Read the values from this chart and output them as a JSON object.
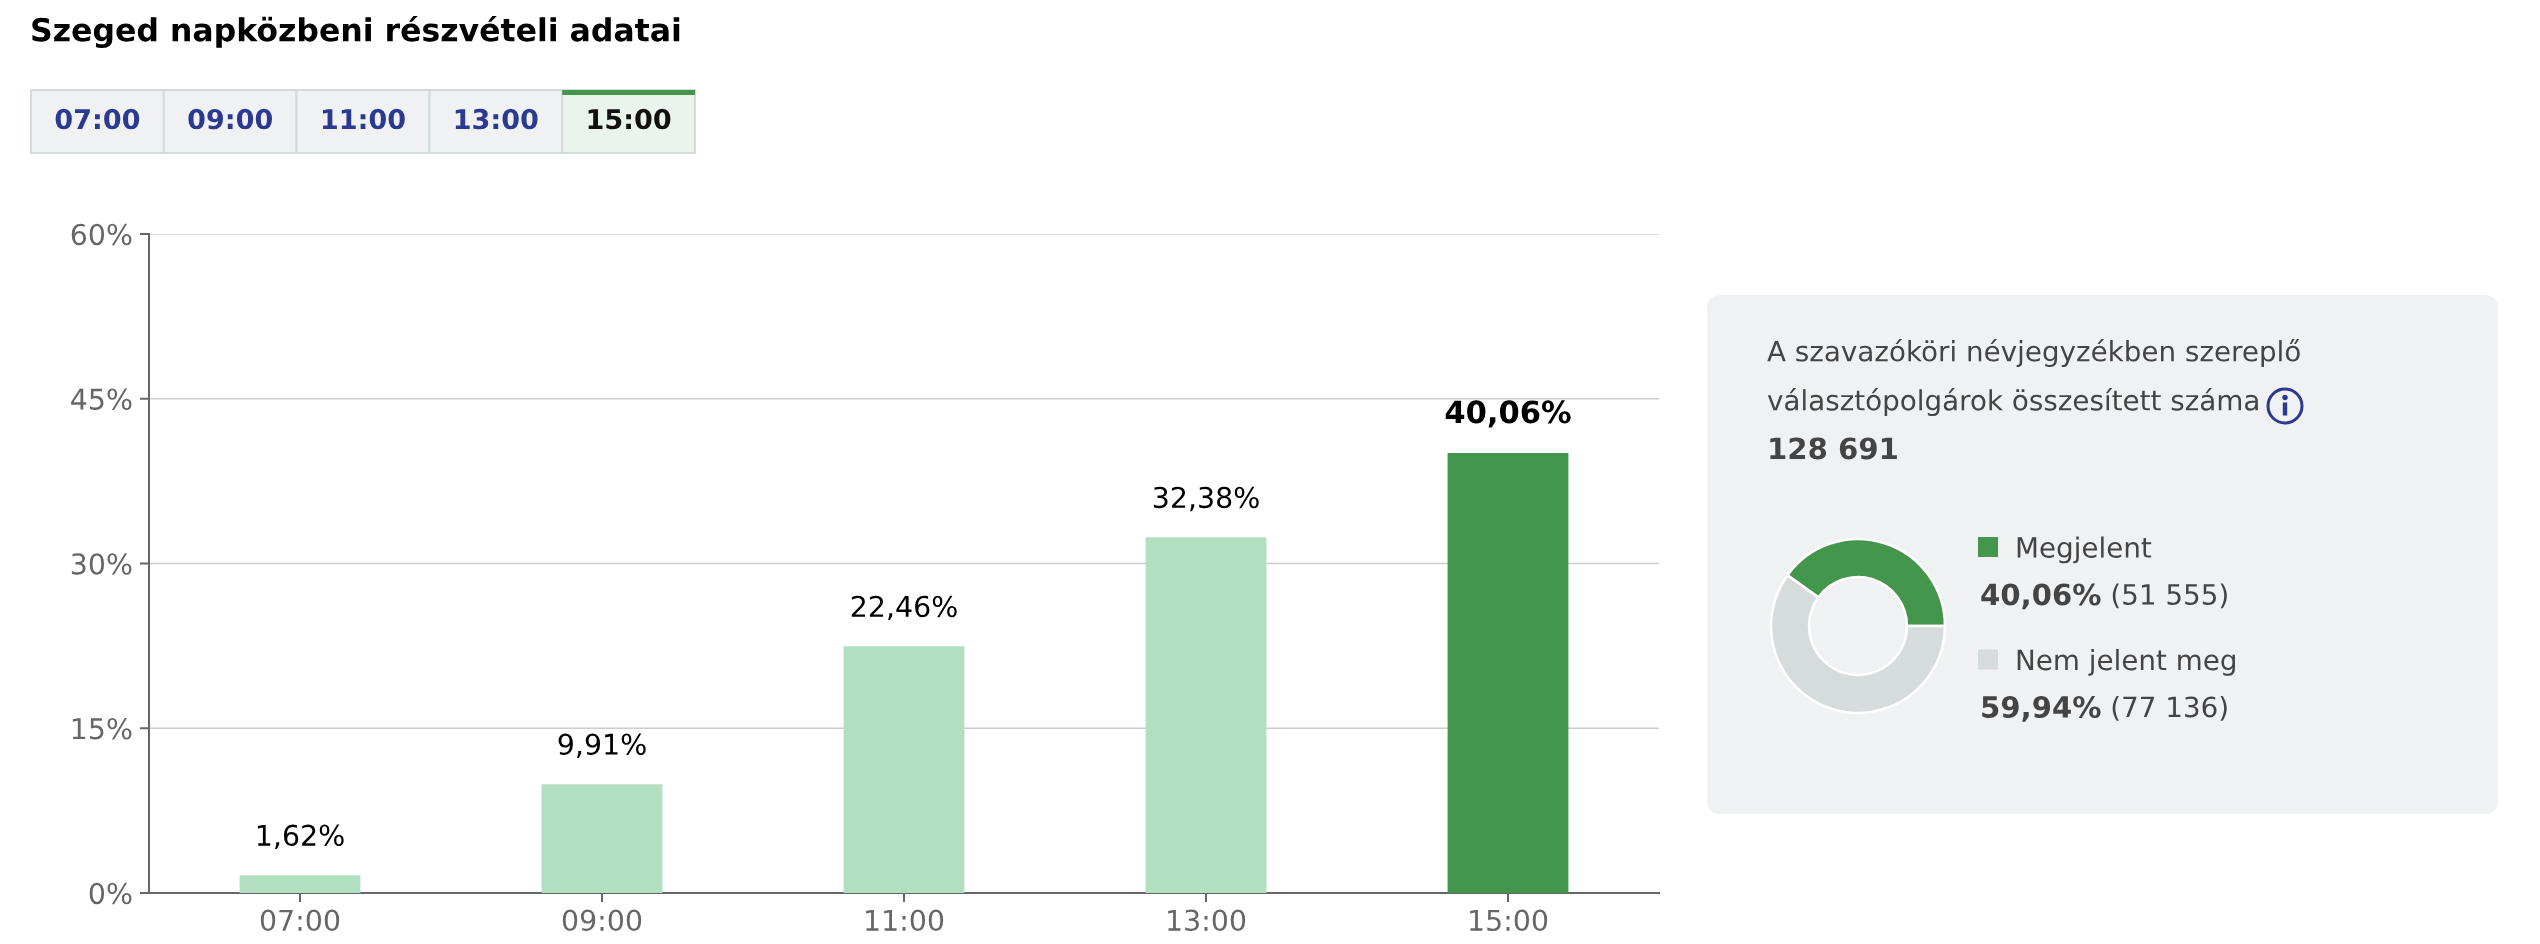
{
  "chart_data": [
    {
      "type": "bar",
      "title": "Szeged napközbeni részvételi adatai",
      "categories": [
        "07:00",
        "09:00",
        "11:00",
        "13:00",
        "15:00"
      ],
      "values": [
        1.62,
        9.91,
        22.46,
        32.38,
        40.06
      ],
      "colors": [
        "#b2dfc0",
        "#b2dfc0",
        "#b2dfc0",
        "#b2dfc0",
        "#43964b"
      ],
      "value_labels": [
        "1,62%",
        "9,91%",
        "22,46%",
        "32,38%",
        "40,06%"
      ],
      "ylim": [
        0,
        60
      ],
      "yticks": [
        {
          "value": 0,
          "label": "0%"
        },
        {
          "value": 15,
          "label": "15%"
        },
        {
          "value": 30,
          "label": "30%"
        },
        {
          "value": 45,
          "label": "45%"
        },
        {
          "value": 60,
          "label": "60%"
        }
      ],
      "grid": "y"
    },
    {
      "type": "donut",
      "title": "A szavazóköri névjegyzékben szereplő választópolgárok összesített száma",
      "subtitle": "128 691",
      "categories": [
        "Megjelent",
        "Nem jelent meg"
      ],
      "values": [
        40.06,
        59.94
      ],
      "colors": [
        "#43964b",
        "#d6dbdc"
      ],
      "value_labels": [
        "40,06%",
        "59,94%"
      ],
      "annotations": [
        "(51 555)",
        "(77 136)"
      ],
      "legend": "right"
    }
  ]
}
